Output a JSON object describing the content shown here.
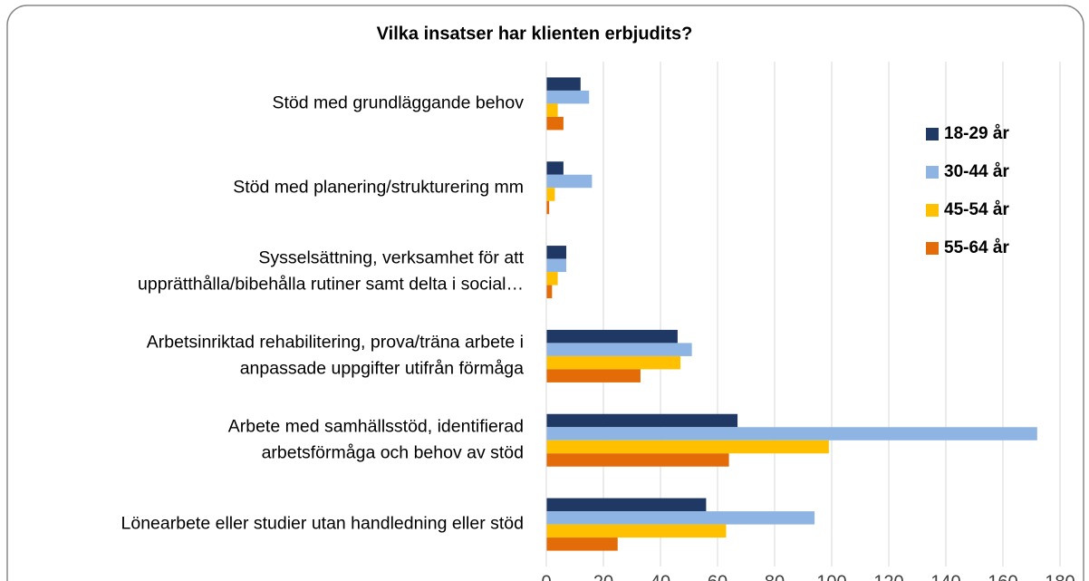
{
  "chart_data": {
    "type": "hbar",
    "title": "Vilka insatser har klienten erbjudits?",
    "categories": [
      [
        "Stöd med grundläggande behov"
      ],
      [
        "Stöd med planering/strukturering mm"
      ],
      [
        "Sysselsättning, verksamhet för att",
        "upprätthålla/bibehålla rutiner samt delta i social…"
      ],
      [
        "Arbetsinriktad rehabilitering, prova/träna arbete i",
        "anpassade uppgifter utifrån förmåga"
      ],
      [
        "Arbete med samhällsstöd, identifierad",
        "arbetsförmåga och behov av stöd"
      ],
      [
        "Lönearbete eller studier utan handledning eller stöd"
      ]
    ],
    "series": [
      {
        "name": "18-29 år",
        "color": "#1f3864",
        "values": [
          12,
          6,
          7,
          46,
          67,
          56
        ]
      },
      {
        "name": "30-44 år",
        "color": "#8eb4e3",
        "values": [
          15,
          16,
          7,
          51,
          172,
          94
        ]
      },
      {
        "name": "45-54 år",
        "color": "#ffc000",
        "values": [
          4,
          3,
          4,
          47,
          99,
          63
        ]
      },
      {
        "name": "55-64 år",
        "color": "#e36c09",
        "values": [
          6,
          1,
          2,
          33,
          64,
          25
        ]
      }
    ],
    "xlim": [
      0,
      180
    ],
    "xticks": [
      0,
      20,
      40,
      60,
      80,
      100,
      120,
      140,
      160,
      180
    ],
    "grid": true,
    "legend": "right"
  }
}
